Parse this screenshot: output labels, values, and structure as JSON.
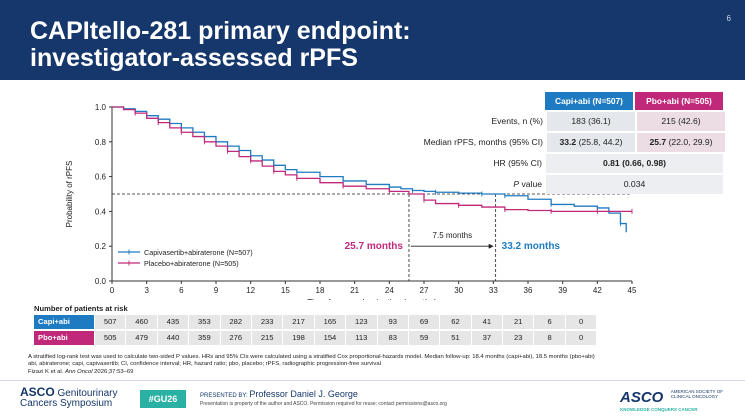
{
  "slide": {
    "title_line1": "CAPItello-281 primary endpoint:",
    "title_line2": "investigator-assessed rPFS",
    "slide_number": "6"
  },
  "colors": {
    "header": "#16376b",
    "capi": "#1f7bc1",
    "pbo": "#c0297a",
    "teal": "#2ab1a3"
  },
  "stats": {
    "headers": [
      "Capi+abi (N=507)",
      "Pbo+abi (N=505)"
    ],
    "rows": [
      {
        "label": "Events, n (%)",
        "capi": "183 (36.1)",
        "pbo": "215 (42.6)"
      },
      {
        "label": "Median rPFS, months (95% CI)",
        "capi_bold": "33.2",
        "capi": " (25.8, 44.2)",
        "pbo_bold": "25.7",
        "pbo": " (22.0, 29.9)"
      },
      {
        "label": "HR (95% CI)",
        "combined": "0.81 (0.66, 0.98)"
      },
      {
        "label_italic": "P",
        "label": " value",
        "combined": "0.034"
      }
    ]
  },
  "chart_data": {
    "type": "line",
    "title": "",
    "xlabel": "Time from randomization (months)",
    "ylabel": "Probability of rPFS",
    "xlim": [
      0,
      45
    ],
    "ylim": [
      0,
      1.0
    ],
    "x_ticks": [
      0,
      3,
      6,
      9,
      12,
      15,
      18,
      21,
      24,
      27,
      30,
      33,
      36,
      39,
      42,
      45
    ],
    "y_ticks": [
      "0.0",
      "0.2",
      "0.4",
      "0.6",
      "0.8",
      "1.0"
    ],
    "y_tick_values": [
      0,
      0.2,
      0.4,
      0.6,
      0.8,
      1.0
    ],
    "median_line_y": 0.5,
    "series": [
      {
        "name": "Capivasertib+abiraterone (N=507)",
        "color": "#1f7bc1",
        "x": [
          0,
          1,
          2,
          3,
          4,
          5,
          6,
          7,
          8,
          9,
          10,
          11,
          12,
          13,
          14,
          15,
          16,
          18,
          20,
          22,
          24,
          25,
          26,
          27,
          28,
          30,
          32,
          33.2,
          34,
          36,
          38,
          40,
          42,
          43,
          44,
          44.5
        ],
        "y": [
          1.0,
          0.99,
          0.975,
          0.95,
          0.93,
          0.905,
          0.88,
          0.855,
          0.83,
          0.8,
          0.775,
          0.75,
          0.72,
          0.695,
          0.665,
          0.64,
          0.625,
          0.6,
          0.575,
          0.555,
          0.54,
          0.53,
          0.52,
          0.515,
          0.51,
          0.505,
          0.5,
          0.5,
          0.49,
          0.47,
          0.44,
          0.43,
          0.42,
          0.39,
          0.33,
          0.28
        ]
      },
      {
        "name": "Placebo+abiraterone (N=505)",
        "color": "#c0297a",
        "x": [
          0,
          1,
          2,
          3,
          4,
          5,
          6,
          7,
          8,
          9,
          10,
          11,
          12,
          13,
          14,
          15,
          16,
          18,
          20,
          22,
          24,
          25.7,
          27,
          28,
          30,
          32,
          34,
          36,
          38,
          40,
          42,
          44,
          45
        ],
        "y": [
          1.0,
          0.985,
          0.965,
          0.935,
          0.91,
          0.88,
          0.855,
          0.83,
          0.8,
          0.775,
          0.745,
          0.715,
          0.69,
          0.66,
          0.63,
          0.61,
          0.59,
          0.565,
          0.545,
          0.53,
          0.515,
          0.5,
          0.465,
          0.445,
          0.435,
          0.425,
          0.41,
          0.405,
          0.4,
          0.4,
          0.4,
          0.4,
          0.4
        ]
      }
    ],
    "annotations": {
      "pbo_median": "25.7 months",
      "capi_median": "33.2 months",
      "difference": "7.5 months",
      "pbo_median_x": 25.7,
      "capi_median_x": 33.2
    }
  },
  "risk_table": {
    "title": "Number of patients at risk",
    "rows": [
      {
        "label": "Capi+abi",
        "values": [
          "507",
          "460",
          "435",
          "353",
          "282",
          "233",
          "217",
          "165",
          "123",
          "93",
          "69",
          "62",
          "41",
          "21",
          "6",
          "0"
        ]
      },
      {
        "label": "Pbo+abi",
        "values": [
          "505",
          "479",
          "440",
          "359",
          "276",
          "215",
          "198",
          "154",
          "113",
          "83",
          "59",
          "51",
          "37",
          "23",
          "8",
          "0"
        ]
      }
    ]
  },
  "footnote": {
    "line1": "A stratified log-rank test was used to calculate two-sided P values. HRs and 95% CIs were calculated using a stratified Cox proportional-hazards model. Median follow-up: 18.4 months (capi+abi), 18.5 months (pbo+abi)",
    "line2": "abi, abiraterone; capi, capivasertib; CI, confidence interval; HR, hazard ratio; pbo, placebo; rPFS, radiographic progression-free survival",
    "citation_author": "Fizazi K et al. ",
    "citation_journal": "Ann Oncol",
    "citation_rest": " 2026;37:53–69"
  },
  "footer": {
    "asco_left_1": "ASCO",
    "asco_left_2": "Genitourinary",
    "asco_left_3": "Cancers Symposium",
    "tag": "#GU26",
    "presented_by": "PRESENTED BY:",
    "presenter": "Professor Daniel J. George",
    "legal": "Presentation is property of the author and ASCO. Permission required for reuse; contact permissions@asco.org",
    "asco_right": "ASCO",
    "asco_right_sub": "AMERICAN SOCIETY OF CLINICAL ONCOLOGY",
    "asco_right_tag": "KNOWLEDGE CONQUERS CANCER"
  }
}
